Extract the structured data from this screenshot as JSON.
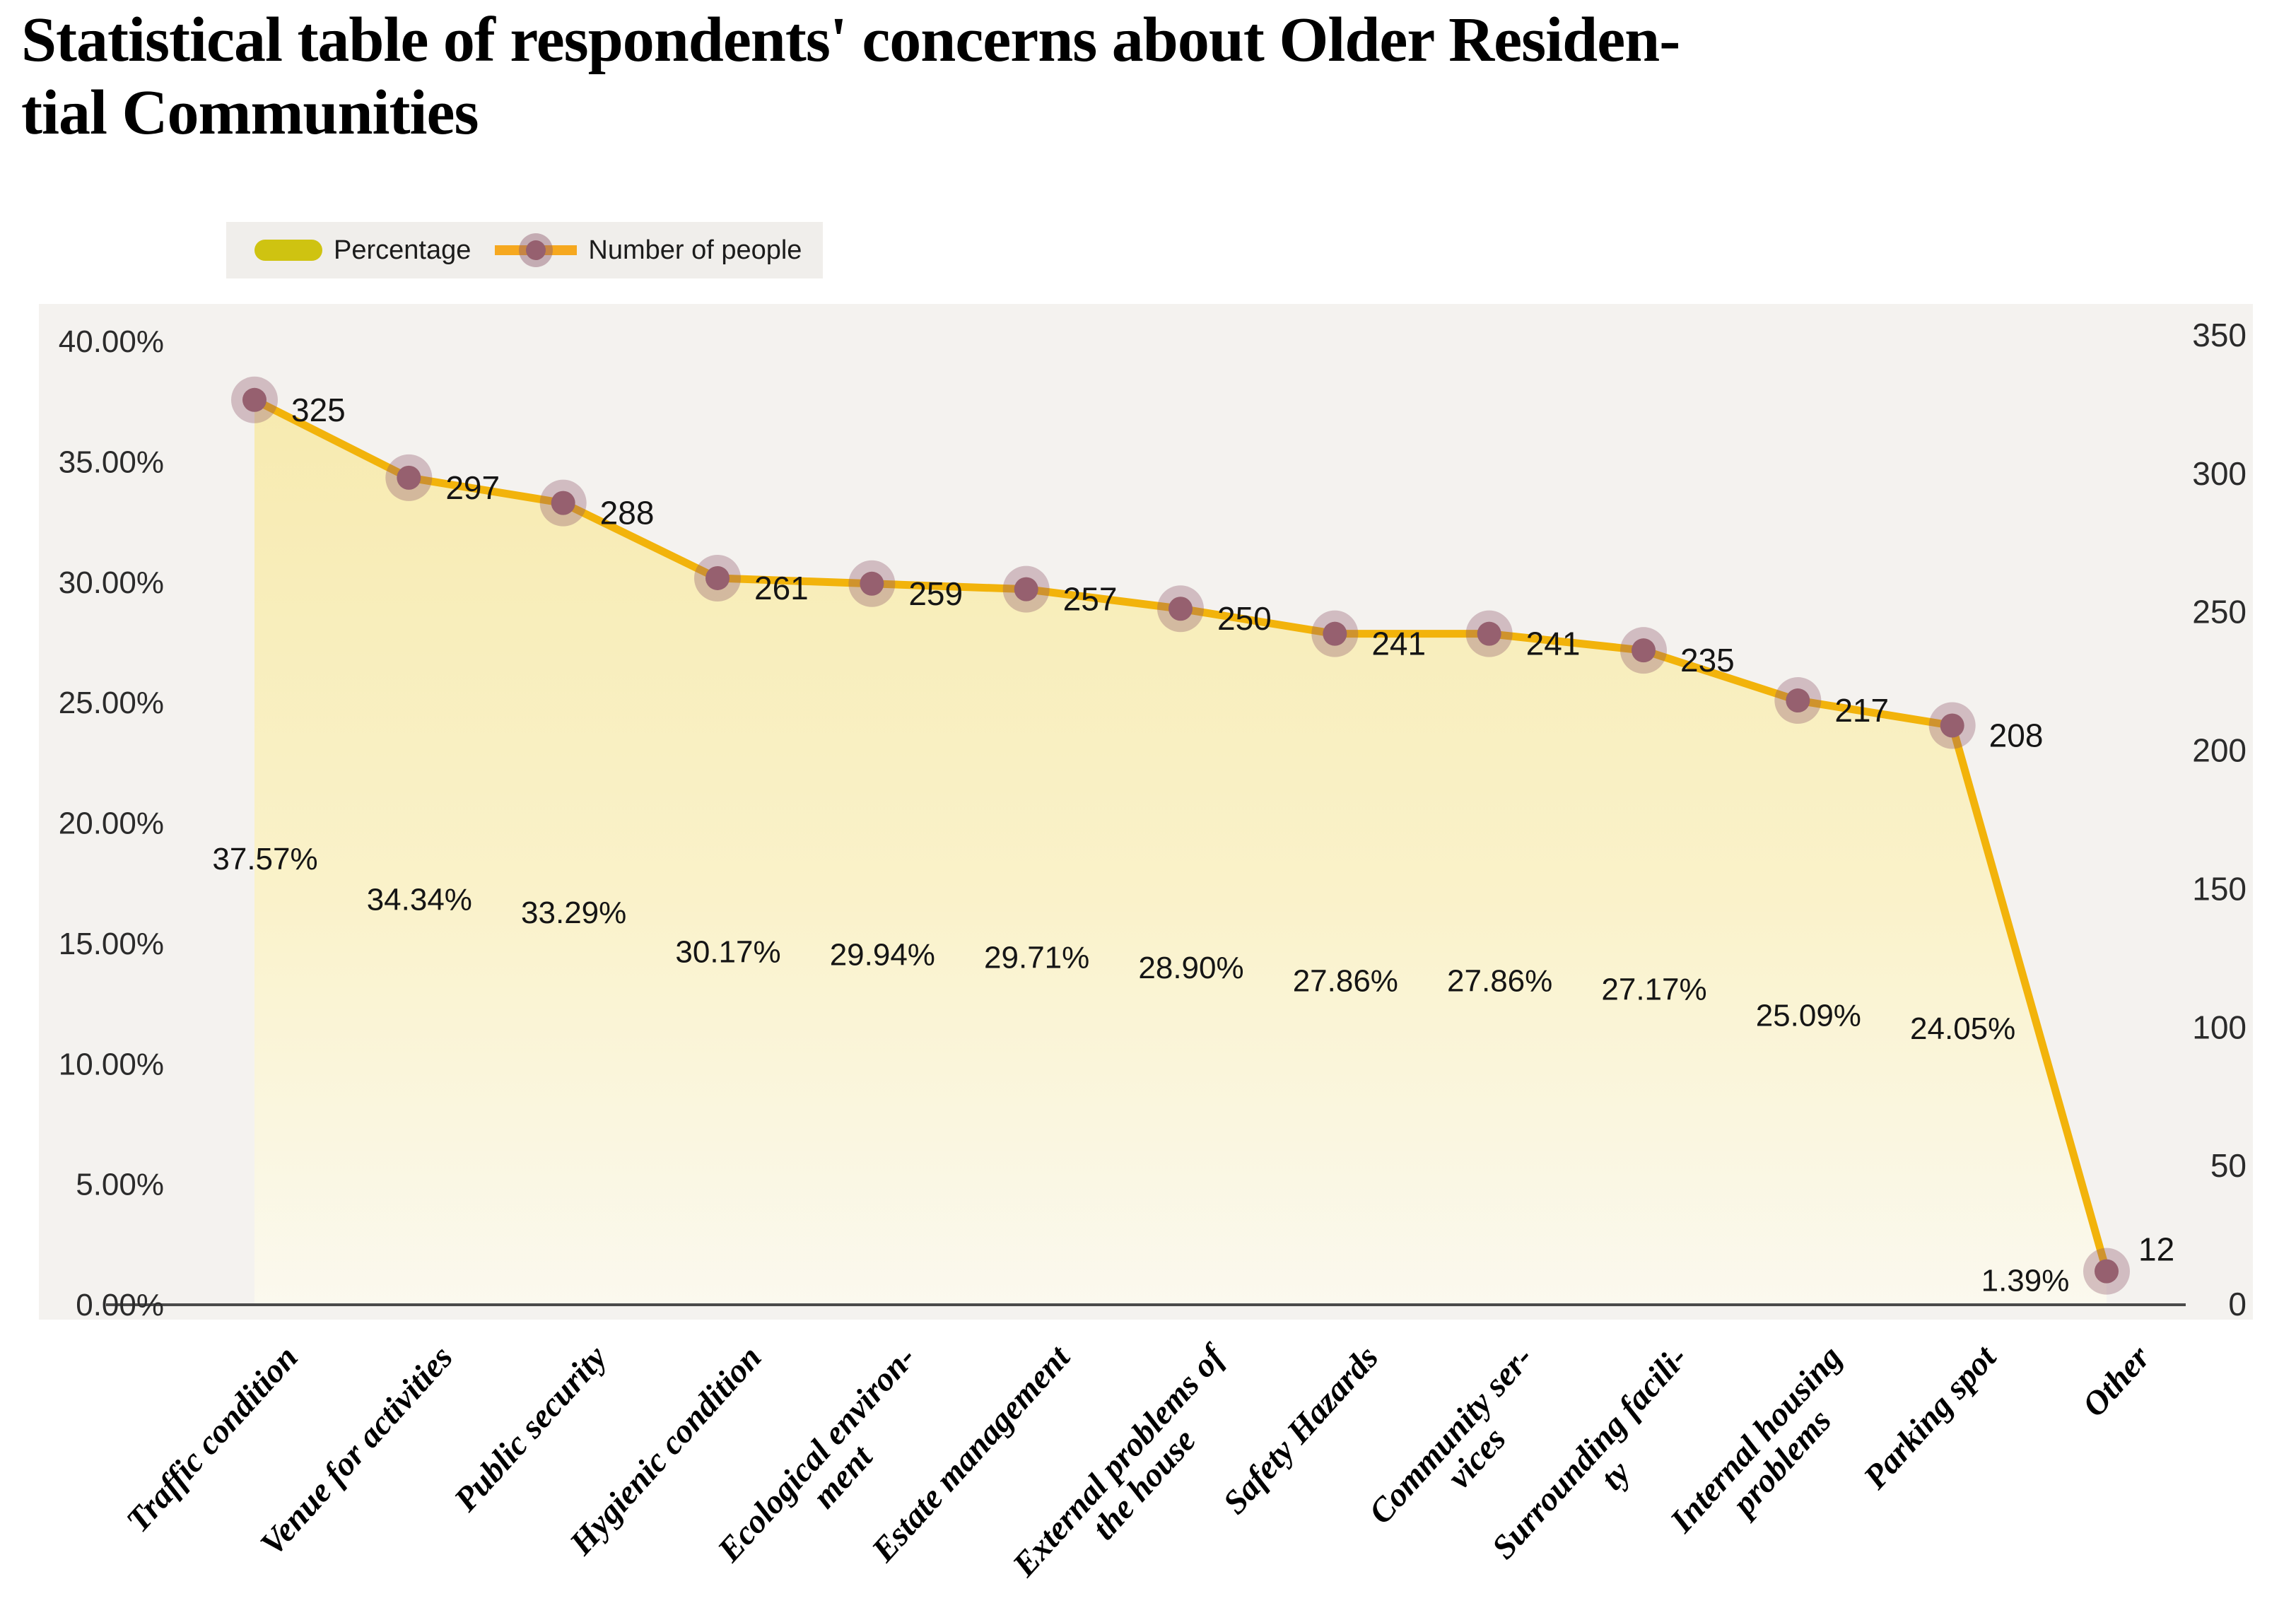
{
  "page": {
    "title": "Statistical table of respondents' concerns about Older Residen-\ntial Communities"
  },
  "legend": {
    "percentage_label": "Percentage",
    "count_label": "Number of people"
  },
  "colors": {
    "line": "#F2B30B",
    "legend_swatch": "#CFC311",
    "legend_line": "#F6A81F",
    "dot": "#96606F",
    "dot_halo": "#8F5A6E",
    "area_top": "#F7EAAE",
    "area_mid": "#FAF2C8",
    "area_bottom": "#FCFAEE",
    "panel_bg": "#F4F2EF",
    "axis_line": "#4A4A4A",
    "text": "#1B1B1B"
  },
  "chart_data": {
    "type": "line",
    "title": "Statistical table of respondents' concerns about Older Residential Communities",
    "categories": [
      "Traffic condition",
      "Venue for activities",
      "Public security",
      "Hygienic condition",
      "Ecological environ-\nment",
      "Estate management",
      "External problems of\nthe house",
      "Safety Hazards",
      "Community ser-\nvices",
      "Surrounding facili-\nty",
      "Internal housing\nproblems",
      "Parking spot",
      "Other"
    ],
    "series": [
      {
        "name": "Percentage",
        "values": [
          37.57,
          34.34,
          33.29,
          30.17,
          29.94,
          29.71,
          28.9,
          27.86,
          27.86,
          27.17,
          25.09,
          24.05,
          1.39
        ],
        "labels": [
          "37.57%",
          "34.34%",
          "33.29%",
          "30.17%",
          "29.94%",
          "29.71%",
          "28.90%",
          "27.86%",
          "27.86%",
          "27.17%",
          "25.09%",
          "24.05%",
          "1.39%"
        ]
      },
      {
        "name": "Number of people",
        "values": [
          325,
          297,
          288,
          261,
          259,
          257,
          250,
          241,
          241,
          235,
          217,
          208,
          12
        ],
        "labels": [
          "325",
          "297",
          "288",
          "261",
          "259",
          "257",
          "250",
          "241",
          "241",
          "235",
          "217",
          "208",
          "12"
        ]
      }
    ],
    "left_axis": {
      "min": 0,
      "max": 40,
      "ticks": [
        "0.00%",
        "5.00%",
        "10.00%",
        "15.00%",
        "20.00%",
        "25.00%",
        "30.00%",
        "35.00%",
        "40.00%"
      ]
    },
    "right_axis": {
      "min": 0,
      "max": 350,
      "ticks": [
        "0",
        "50",
        "100",
        "150",
        "200",
        "250",
        "300",
        "350"
      ]
    },
    "legend_position": "top-left",
    "grid": false,
    "area_fill": true
  }
}
